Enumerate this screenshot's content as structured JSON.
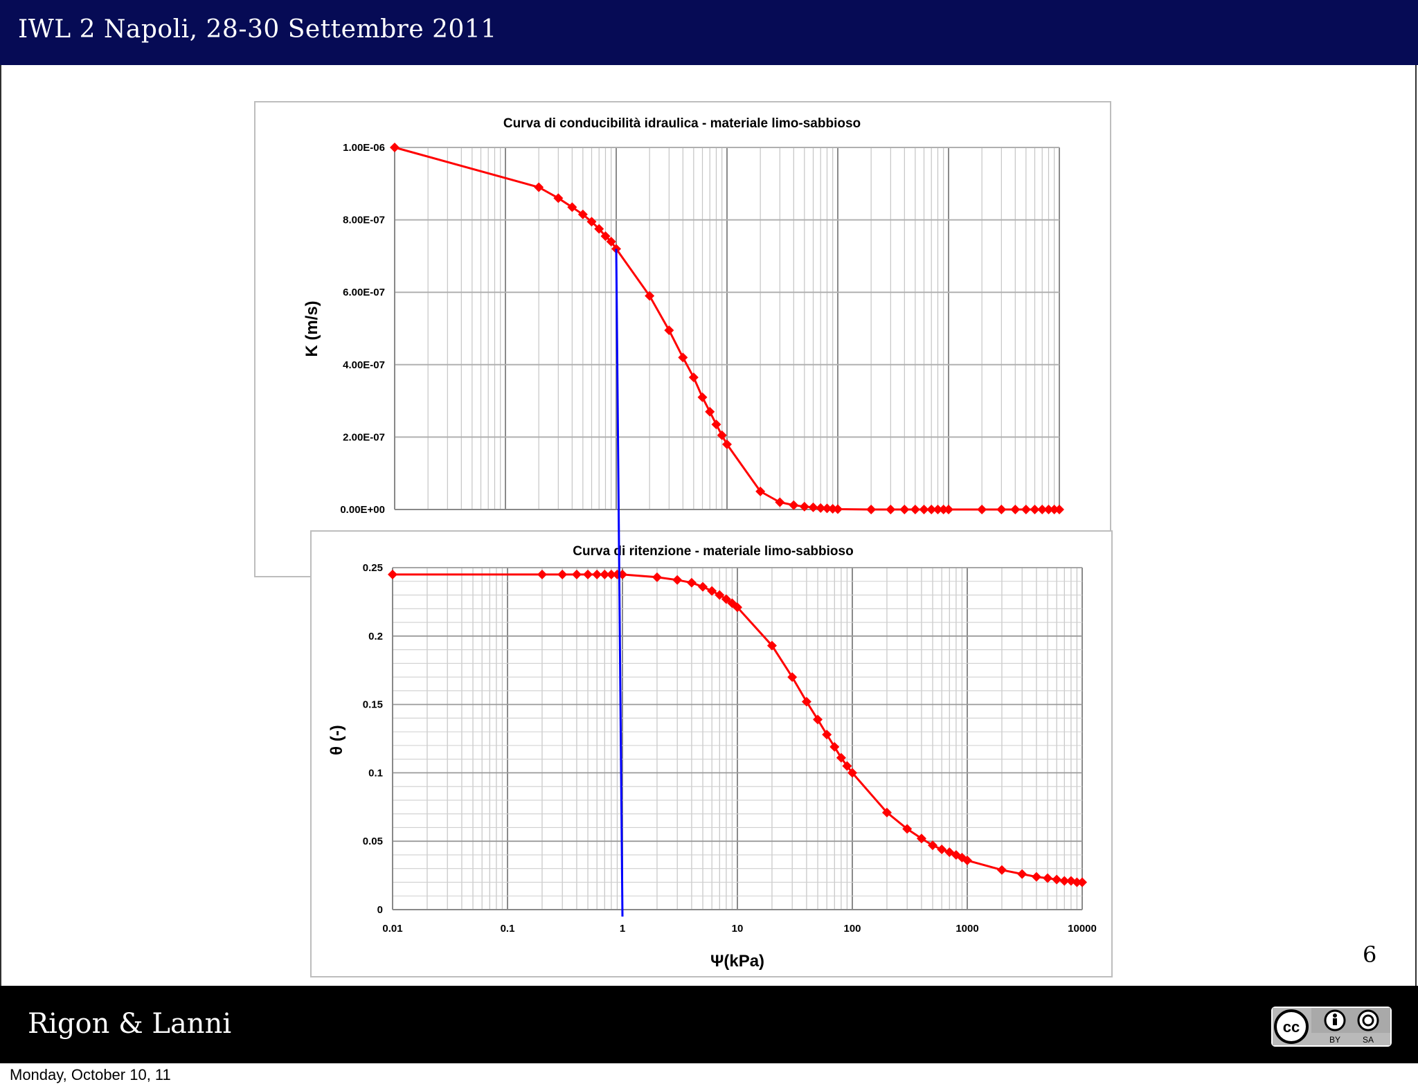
{
  "header": {
    "title": "IWL 2 Napoli, 28-30 Settembre 2011"
  },
  "footer": {
    "author": "Rigon & Lanni",
    "license": {
      "icon": "cc-by-sa-icon",
      "labels": [
        "BY",
        "SA"
      ]
    }
  },
  "slide_number": "6",
  "date_line": "Monday, October 10, 11",
  "colors": {
    "header_bg": "#060b55",
    "footer_bg": "#000000",
    "series": "#ff0000",
    "marker_line": "#0000ff"
  },
  "chart_data": [
    {
      "type": "line",
      "title": "Curva di conducibilità idraulica - materiale limo-sabbioso",
      "xlabel": "",
      "ylabel": "K (m/s)",
      "x_scale": "log",
      "xlim": [
        0.01,
        10000
      ],
      "ylim": [
        0,
        1e-06
      ],
      "grid": true,
      "ytick_labels": [
        "0.00E+00",
        "2.00E-07",
        "4.00E-07",
        "6.00E-07",
        "8.00E-07",
        "1.00E-06"
      ],
      "ytick_values": [
        0,
        2e-07,
        4e-07,
        6e-07,
        8e-07,
        1e-06
      ],
      "x": [
        0.01,
        0.2,
        0.3,
        0.4,
        0.5,
        0.6,
        0.7,
        0.8,
        0.9,
        1,
        2,
        3,
        4,
        5,
        6,
        7,
        8,
        9,
        10,
        20,
        30,
        40,
        50,
        60,
        70,
        80,
        90,
        100,
        200,
        300,
        400,
        500,
        600,
        700,
        800,
        900,
        1000,
        2000,
        3000,
        4000,
        5000,
        6000,
        7000,
        8000,
        9000,
        10000
      ],
      "y": [
        1e-06,
        8.9e-07,
        8.6e-07,
        8.35e-07,
        8.15e-07,
        7.95e-07,
        7.75e-07,
        7.55e-07,
        7.4e-07,
        7.2e-07,
        5.9e-07,
        4.95e-07,
        4.2e-07,
        3.65e-07,
        3.1e-07,
        2.7e-07,
        2.35e-07,
        2.05e-07,
        1.8e-07,
        5e-08,
        2e-08,
        1.2e-08,
        8e-09,
        6e-09,
        4e-09,
        3e-09,
        2e-09,
        1e-09,
        0,
        0,
        0,
        0,
        0,
        0,
        0,
        0,
        0,
        0,
        0,
        0,
        0,
        0,
        0,
        0,
        0,
        0
      ],
      "annotation": {
        "type": "vertical-line",
        "x": 1
      }
    },
    {
      "type": "line",
      "title": "Curva di ritenzione - materiale limo-sabbioso",
      "xlabel": "Ψ(kPa)",
      "ylabel": "θ (-)",
      "x_scale": "log",
      "xlim": [
        0.01,
        10000
      ],
      "ylim": [
        0,
        0.25
      ],
      "grid": true,
      "xtick_labels": [
        "0.01",
        "0.1",
        "1",
        "10",
        "100",
        "1000",
        "10000"
      ],
      "xtick_values": [
        0.01,
        0.1,
        1,
        10,
        100,
        1000,
        10000
      ],
      "ytick_labels": [
        "0",
        "0.05",
        "0.1",
        "0.15",
        "0.2",
        "0.25"
      ],
      "ytick_values": [
        0,
        0.05,
        0.1,
        0.15,
        0.2,
        0.25
      ],
      "x": [
        0.01,
        0.2,
        0.3,
        0.4,
        0.5,
        0.6,
        0.7,
        0.8,
        0.9,
        1,
        2,
        3,
        4,
        5,
        6,
        7,
        8,
        9,
        10,
        20,
        30,
        40,
        50,
        60,
        70,
        80,
        90,
        100,
        200,
        300,
        400,
        500,
        600,
        700,
        800,
        900,
        1000,
        2000,
        3000,
        4000,
        5000,
        6000,
        7000,
        8000,
        9000,
        10000
      ],
      "y": [
        0.245,
        0.245,
        0.245,
        0.245,
        0.245,
        0.245,
        0.245,
        0.245,
        0.245,
        0.245,
        0.243,
        0.241,
        0.239,
        0.236,
        0.233,
        0.23,
        0.227,
        0.224,
        0.221,
        0.193,
        0.17,
        0.152,
        0.139,
        0.128,
        0.119,
        0.111,
        0.105,
        0.1,
        0.071,
        0.059,
        0.052,
        0.047,
        0.044,
        0.042,
        0.04,
        0.038,
        0.036,
        0.029,
        0.026,
        0.024,
        0.023,
        0.022,
        0.021,
        0.021,
        0.02,
        0.02
      ],
      "annotation": {
        "type": "vertical-line",
        "x": 1
      }
    }
  ]
}
